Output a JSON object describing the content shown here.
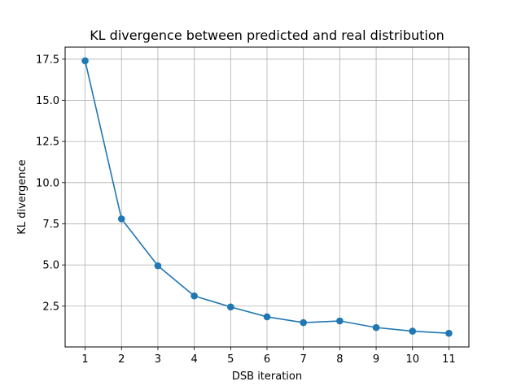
{
  "chart_data": {
    "type": "line",
    "title": "KL divergence between predicted and real distribution",
    "xlabel": "DSB iteration",
    "ylabel": "KL divergence",
    "x": [
      1,
      2,
      3,
      4,
      5,
      6,
      7,
      8,
      9,
      10,
      11
    ],
    "series": [
      {
        "values": [
          17.4,
          7.8,
          4.95,
          3.12,
          2.45,
          1.85,
          1.5,
          1.6,
          1.2,
          0.98,
          0.85
        ],
        "color": "#1f77b4",
        "marker": "circle"
      }
    ],
    "xticks": [
      "1",
      "2",
      "3",
      "4",
      "5",
      "6",
      "7",
      "8",
      "9",
      "10",
      "11"
    ],
    "yticks": [
      "2.5",
      "5.0",
      "7.5",
      "10.0",
      "12.5",
      "15.0",
      "17.5"
    ],
    "xlim": [
      0.45,
      11.55
    ],
    "ylim": [
      0.022,
      18.23
    ],
    "grid": true,
    "grid_color": "#b0b0b0"
  }
}
